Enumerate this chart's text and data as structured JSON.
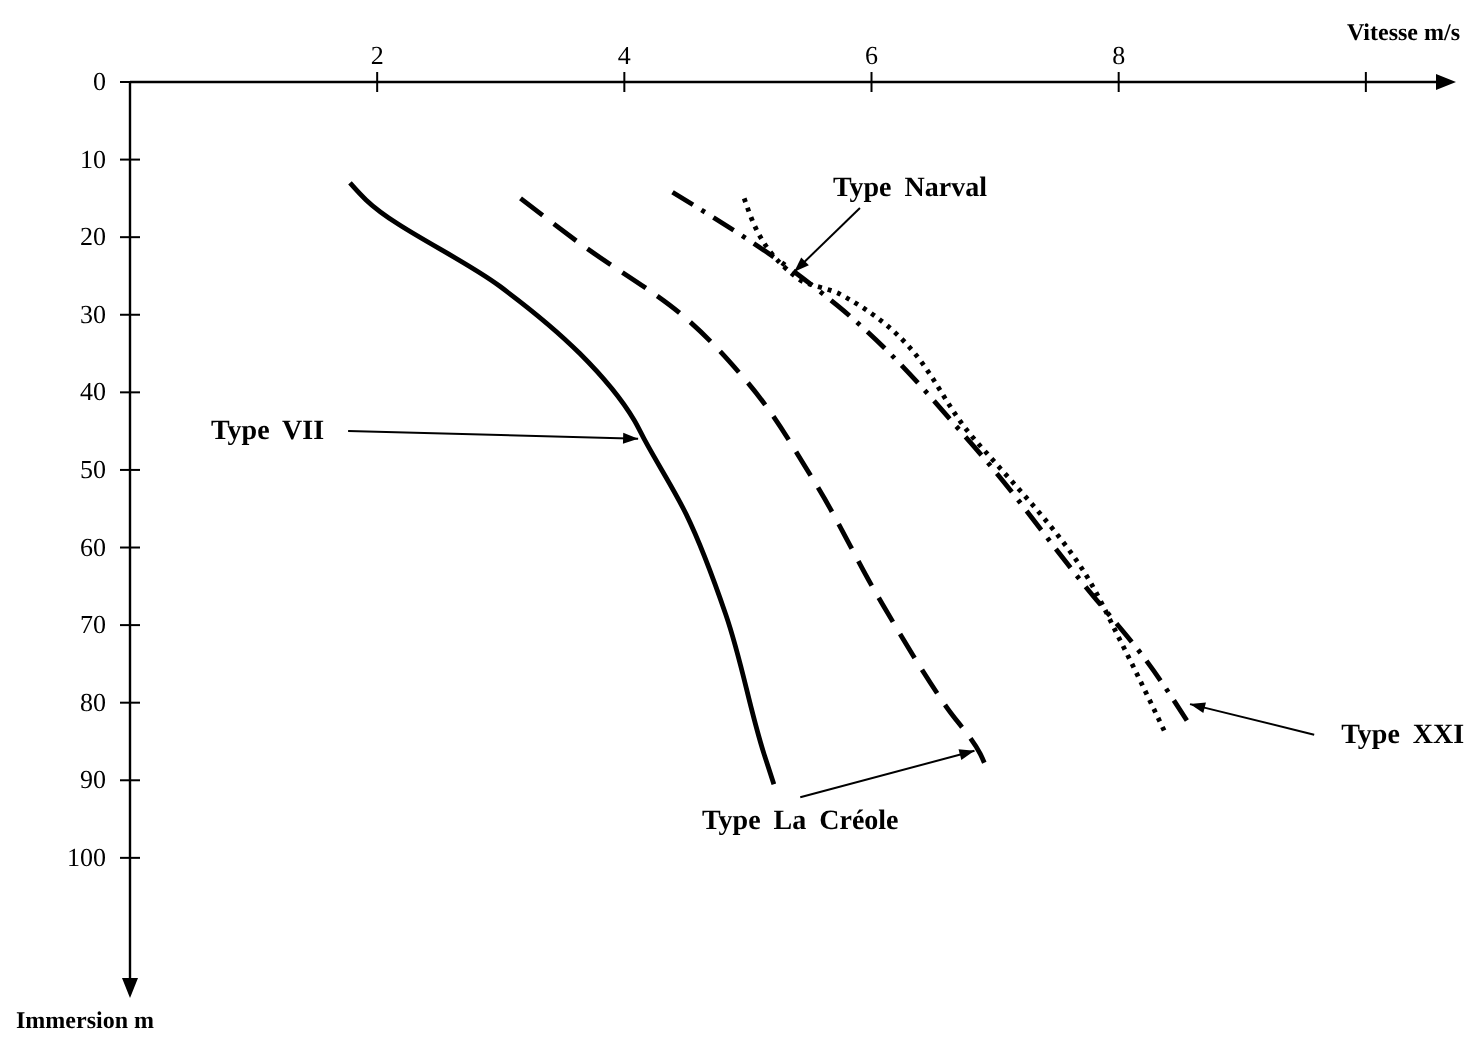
{
  "chart_data": {
    "type": "line",
    "xlabel": "Vitesse m/s",
    "ylabel": "Immersion m",
    "xlim": [
      0,
      10.6
    ],
    "xticks": [
      2,
      4,
      6,
      8,
      {
        "value": 10,
        "label": null
      }
    ],
    "ylim": [
      116,
      0
    ],
    "yticks": [
      0,
      10,
      20,
      30,
      40,
      50,
      60,
      70,
      80,
      90,
      100
    ],
    "grid": false,
    "series": [
      {
        "color": "#000000",
        "line_style": "solid",
        "x": [
          1.78,
          1.91,
          2.99,
          3.64,
          4.08,
          4.16,
          4.5,
          4.82,
          5.13,
          5.21
        ],
        "values": [
          13,
          15.2,
          26.3,
          35,
          43.6,
          46,
          55.7,
          68.6,
          86.6,
          90.5
        ]
      },
      {
        "color": "#000000",
        "line_style": "dashed",
        "x": [
          3.16,
          3.64,
          4.45,
          4.98,
          5.53,
          6.07,
          6.6,
          6.88,
          6.93
        ],
        "values": [
          15,
          20.8,
          29.8,
          38.4,
          51.3,
          66.8,
          80.4,
          86.6,
          88.4
        ]
      },
      {
        "color": "#000000",
        "line_style": "dashdot",
        "x": [
          4.39,
          5.31,
          5.73,
          6.83,
          7.73,
          8.22,
          8.58
        ],
        "values": [
          14.2,
          23.7,
          28.9,
          47,
          65,
          74.5,
          83
        ]
      },
      {
        "color": "#000000",
        "line_style": "dotted",
        "x": [
          4.97,
          5.42,
          5.74,
          6.83,
          7.73,
          8.01,
          8.38
        ],
        "values": [
          15,
          25.5,
          27.3,
          46,
          63.4,
          71.9,
          84
        ]
      }
    ],
    "annotations": [
      {
        "text": "Type Narval",
        "x": 5.34,
        "y": 25
      },
      {
        "text": "Type VII",
        "x": 4.16,
        "y": 46
      },
      {
        "text": "Type La Créole",
        "x": 6.88,
        "y": 86
      },
      {
        "text": "Type XXI",
        "x": 8.53,
        "y": 80
      }
    ]
  }
}
